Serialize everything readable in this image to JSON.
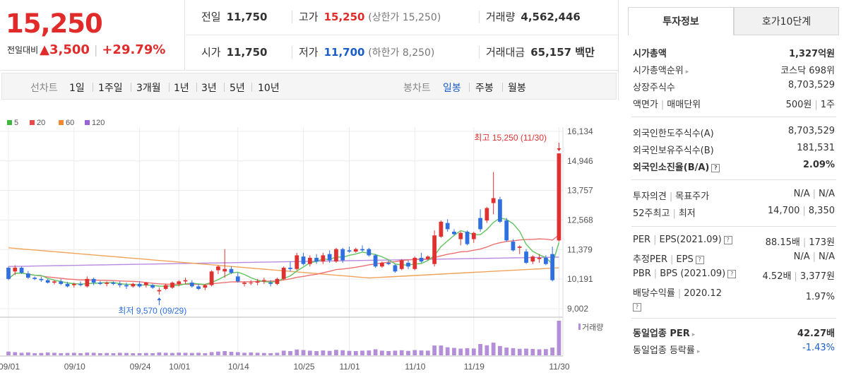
{
  "price": {
    "current": "15,250",
    "change_label": "전일대비",
    "change_arrow": "▲",
    "change_value": "3,500",
    "change_pct": "+29.79%"
  },
  "quote": {
    "prev_label": "전일",
    "prev": "11,750",
    "high_label": "고가",
    "high": "15,250",
    "high_limit": "(상한가 15,250)",
    "volume_label": "거래량",
    "volume": "4,562,446",
    "open_label": "시가",
    "open": "11,750",
    "low_label": "저가",
    "low": "11,700",
    "low_limit": "(하한가 8,250)",
    "amount_label": "거래대금",
    "amount": "65,157 백만"
  },
  "period_bar": {
    "line_title": "선차트",
    "line_items": [
      "1일",
      "1주일",
      "3개월",
      "1년",
      "3년",
      "5년",
      "10년"
    ],
    "candle_title": "봉차트",
    "candle_items": [
      "일봉",
      "주봉",
      "월봉"
    ],
    "active": "일봉"
  },
  "chart_data": {
    "type": "candlestick",
    "legend": [
      {
        "name": "5",
        "color": "#3cb83c"
      },
      {
        "name": "20",
        "color": "#e84a4a"
      },
      {
        "name": "60",
        "color": "#f0892e"
      },
      {
        "name": "120",
        "color": "#9b64d6"
      }
    ],
    "ylim": [
      9002,
      16134
    ],
    "y_ticks": [
      "16,134",
      "14,946",
      "13,757",
      "12,568",
      "11,379",
      "10,191",
      "9,002"
    ],
    "y_tick_values": [
      16134,
      14946,
      13757,
      12568,
      11379,
      10191,
      9002
    ],
    "x_labels": [
      "09/01",
      "09/10",
      "09/24",
      "10/01",
      "10/14",
      "10/25",
      "11/01",
      "11/10",
      "11/19",
      "11/30"
    ],
    "max_annotation": "최고 15,250 (11/30)",
    "min_annotation": "최저 9,570 (09/29)",
    "volume_label": "거래량",
    "candles": [
      [
        10650,
        10700,
        10150,
        10200
      ],
      [
        10500,
        10750,
        10350,
        10650
      ],
      [
        10650,
        10700,
        10400,
        10450
      ],
      [
        10420,
        10520,
        10200,
        10250
      ],
      [
        10250,
        10300,
        10150,
        10200
      ],
      [
        10200,
        10280,
        10080,
        10150
      ],
      [
        10150,
        10200,
        10020,
        10050
      ],
      [
        10050,
        10150,
        9980,
        10100
      ],
      [
        10100,
        10200,
        9950,
        10000
      ],
      [
        10000,
        10080,
        9860,
        9900
      ],
      [
        9950,
        10050,
        9850,
        10000
      ],
      [
        10000,
        10100,
        9900,
        9950
      ],
      [
        9900,
        10300,
        9850,
        10200
      ],
      [
        10200,
        10250,
        9950,
        10050
      ],
      [
        10050,
        10120,
        9950,
        10000
      ],
      [
        10000,
        10100,
        9900,
        10050
      ],
      [
        10050,
        10100,
        9950,
        10000
      ],
      [
        10000,
        10100,
        9850,
        9950
      ],
      [
        9950,
        10050,
        9800,
        9900
      ],
      [
        9900,
        10050,
        9850,
        10000
      ],
      [
        10000,
        10100,
        9850,
        9900
      ],
      [
        9950,
        10080,
        9850,
        10050
      ],
      [
        9950,
        10000,
        9800,
        9850
      ],
      [
        9700,
        9850,
        9570,
        9750
      ],
      [
        9800,
        10000,
        9750,
        9950
      ],
      [
        9850,
        10100,
        9800,
        10050
      ],
      [
        10000,
        10150,
        9900,
        10100
      ],
      [
        10100,
        10250,
        10000,
        10150
      ],
      [
        10050,
        10150,
        9850,
        9900
      ],
      [
        9900,
        10000,
        9750,
        9800
      ],
      [
        9850,
        10000,
        9750,
        9950
      ],
      [
        9950,
        10550,
        9900,
        10500
      ],
      [
        10550,
        10750,
        10400,
        10700
      ],
      [
        10500,
        11400,
        10250,
        10600
      ],
      [
        10600,
        10700,
        10400,
        10450
      ],
      [
        10300,
        10450,
        10050,
        10100
      ],
      [
        10000,
        10100,
        9900,
        10050
      ],
      [
        10050,
        10150,
        9950,
        10050
      ],
      [
        10050,
        10200,
        9950,
        10100
      ],
      [
        10100,
        10250,
        10000,
        10150
      ],
      [
        10050,
        10150,
        9900,
        10000
      ],
      [
        10000,
        10250,
        9950,
        10200
      ],
      [
        10200,
        10700,
        10150,
        10650
      ],
      [
        10650,
        10900,
        10500,
        10600
      ],
      [
        10600,
        11250,
        10550,
        11150
      ],
      [
        11100,
        11250,
        10750,
        10800
      ],
      [
        10800,
        11150,
        10700,
        11050
      ],
      [
        11050,
        11200,
        10800,
        10900
      ],
      [
        10900,
        11250,
        10800,
        11150
      ],
      [
        11200,
        11350,
        10850,
        10950
      ],
      [
        10900,
        11450,
        10850,
        11400
      ],
      [
        11400,
        11450,
        10850,
        10950
      ],
      [
        11350,
        11500,
        11250,
        11300
      ],
      [
        11300,
        11450,
        11250,
        11400
      ],
      [
        11400,
        11550,
        11300,
        11350
      ],
      [
        11400,
        11450,
        11100,
        11150
      ],
      [
        11150,
        11200,
        10650,
        10700
      ],
      [
        10700,
        10900,
        10650,
        10850
      ],
      [
        10850,
        10950,
        10750,
        10800
      ],
      [
        10750,
        10800,
        10450,
        10500
      ],
      [
        10600,
        11000,
        10550,
        10950
      ],
      [
        10850,
        10950,
        10600,
        10700
      ],
      [
        10600,
        11100,
        10550,
        11050
      ],
      [
        11050,
        11250,
        10850,
        10900
      ],
      [
        11000,
        11150,
        10950,
        11100
      ],
      [
        10800,
        12150,
        10700,
        11950
      ],
      [
        11900,
        12550,
        11850,
        12500
      ],
      [
        12450,
        12600,
        12100,
        12200
      ],
      [
        12100,
        12200,
        11950,
        12000
      ],
      [
        11800,
        12100,
        11550,
        12050
      ],
      [
        12100,
        12150,
        11550,
        11600
      ],
      [
        11800,
        12100,
        11650,
        12050
      ],
      [
        12650,
        13000,
        12100,
        12200
      ],
      [
        12550,
        13100,
        12450,
        13050
      ],
      [
        13250,
        14500,
        12800,
        13450
      ],
      [
        13400,
        13500,
        12450,
        12500
      ],
      [
        12550,
        12650,
        11700,
        11750
      ],
      [
        11700,
        11800,
        11300,
        11350
      ],
      [
        11450,
        11550,
        11200,
        11500
      ],
      [
        11300,
        11400,
        10800,
        10850
      ],
      [
        10900,
        11150,
        10800,
        11100
      ],
      [
        11000,
        11200,
        10850,
        11050
      ],
      [
        11050,
        11150,
        10750,
        10800
      ],
      [
        11200,
        11500,
        10100,
        10150
      ],
      [
        11750,
        15250,
        11700,
        15250
      ]
    ],
    "volumes": [
      80000,
      60000,
      40000,
      50000,
      30000,
      35000,
      50000,
      40000,
      30000,
      35000,
      40000,
      30000,
      45000,
      40000,
      30000,
      35000,
      30000,
      40000,
      35000,
      30000,
      30000,
      35000,
      30000,
      50000,
      40000,
      35000,
      45000,
      40000,
      35000,
      40000,
      30000,
      60000,
      80000,
      100000,
      70000,
      60000,
      40000,
      50000,
      40000,
      35000,
      30000,
      40000,
      120000,
      100000,
      180000,
      150000,
      120000,
      100000,
      130000,
      110000,
      160000,
      140000,
      110000,
      100000,
      120000,
      130000,
      190000,
      120000,
      100000,
      120000,
      140000,
      110000,
      150000,
      130000,
      120000,
      460000,
      460000,
      320000,
      280000,
      230000,
      260000,
      240000,
      600000,
      480000,
      730000,
      420000,
      300000,
      260000,
      220000,
      230000,
      210000,
      190000,
      200000,
      300000,
      4562446
    ]
  },
  "invest": {
    "tab_active": "투자정보",
    "tab_other": "호가10단계",
    "market_cap_label": "시가총액",
    "market_cap": "1,327억원",
    "cap_rank_label": "시가총액순위",
    "cap_rank": "코스닥 698위",
    "shares_label": "상장주식수",
    "shares": "8,703,529",
    "par_label": "액면가",
    "unit_label": "매매단위",
    "par": "500원",
    "unit": "1주",
    "foreign_limit_label": "외국인한도주식수(A)",
    "foreign_limit": "8,703,529",
    "foreign_hold_label": "외국인보유주식수(B)",
    "foreign_hold": "181,531",
    "foreign_ratio_label": "외국인소진율(B/A)",
    "foreign_ratio": "2.09%",
    "opinion_label": "투자의견",
    "target_label": "목표주가",
    "opinion": "N/A",
    "target": "N/A",
    "w52_high_label": "52주최고",
    "w52_low_label": "최저",
    "w52_high": "14,700",
    "w52_low": "8,350",
    "per_label": "PER",
    "eps_label": "EPS(2021.09)",
    "per": "88.15배",
    "eps": "173원",
    "est_per_label": "추정PER",
    "est_eps_label": "EPS",
    "est_per": "N/A",
    "est_eps": "N/A",
    "pbr_label": "PBR",
    "bps_label": "BPS (2021.09)",
    "pbr": "4.52배",
    "bps": "3,377원",
    "div_label": "배당수익률",
    "div_date": "2020.12",
    "div": "1.97%",
    "sector_per_label": "동일업종 PER",
    "sector_per": "42.27배",
    "sector_chg_label": "동일업종 등락률",
    "sector_chg": "-1.43%"
  }
}
